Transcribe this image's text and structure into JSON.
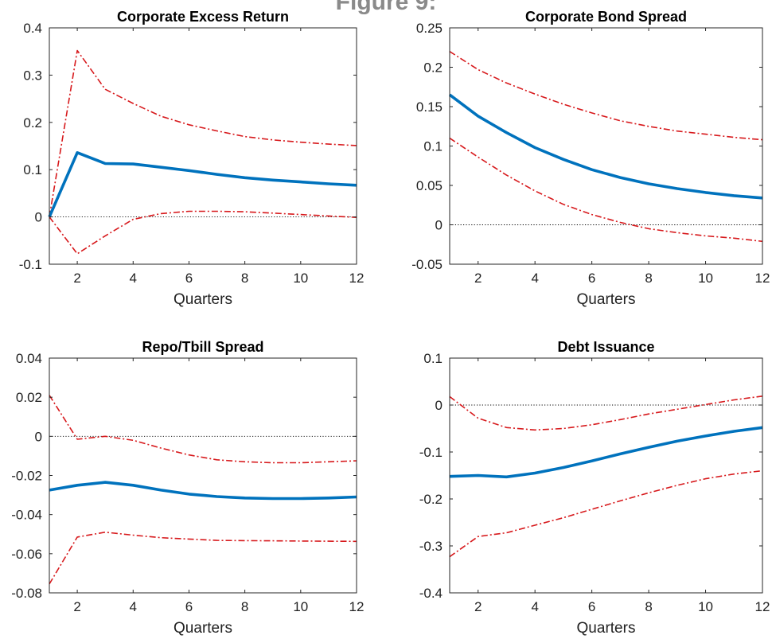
{
  "figure_title": "Figure 9:",
  "colors": {
    "median": "#0072BD",
    "bands": "#D7191C",
    "zero_line": "#000000",
    "axes": "#262626"
  },
  "chart_data": [
    {
      "type": "line",
      "title": "Corporate Excess Return",
      "xlabel": "Quarters",
      "ylabel": "",
      "xlim": [
        1,
        12
      ],
      "ylim": [
        -0.1,
        0.4
      ],
      "xticks": [
        2,
        4,
        6,
        8,
        10,
        12
      ],
      "xtick_labels": [
        "2",
        "4",
        "6",
        "8",
        "10",
        "12"
      ],
      "yticks": [
        -0.1,
        0,
        0.1,
        0.2,
        0.3,
        0.4
      ],
      "ytick_labels": [
        "-0.1",
        "0",
        "0.1",
        "0.2",
        "0.3",
        "0.4"
      ],
      "grid": false,
      "legend": "none",
      "x": [
        1,
        2,
        3,
        4,
        5,
        6,
        7,
        8,
        9,
        10,
        11,
        12
      ],
      "series": [
        {
          "role": "upper",
          "values": [
            0,
            0.352,
            0.27,
            0.24,
            0.213,
            0.195,
            0.182,
            0.17,
            0.163,
            0.158,
            0.154,
            0.151
          ]
        },
        {
          "role": "median",
          "values": [
            0,
            0.136,
            0.113,
            0.112,
            0.105,
            0.098,
            0.09,
            0.083,
            0.078,
            0.074,
            0.07,
            0.067
          ]
        },
        {
          "role": "lower",
          "values": [
            0,
            -0.078,
            -0.04,
            -0.005,
            0.007,
            0.012,
            0.012,
            0.011,
            0.008,
            0.005,
            0.002,
            -0.001
          ]
        }
      ]
    },
    {
      "type": "line",
      "title": "Corporate Bond Spread",
      "xlabel": "Quarters",
      "ylabel": "",
      "xlim": [
        1,
        12
      ],
      "ylim": [
        -0.05,
        0.25
      ],
      "xticks": [
        2,
        4,
        6,
        8,
        10,
        12
      ],
      "xtick_labels": [
        "2",
        "4",
        "6",
        "8",
        "10",
        "12"
      ],
      "yticks": [
        -0.05,
        0,
        0.05,
        0.1,
        0.15,
        0.2,
        0.25
      ],
      "ytick_labels": [
        "-0.05",
        "0",
        "0.05",
        "0.1",
        "0.15",
        "0.2",
        "0.25"
      ],
      "grid": false,
      "legend": "none",
      "x": [
        1,
        2,
        3,
        4,
        5,
        6,
        7,
        8,
        9,
        10,
        11,
        12
      ],
      "series": [
        {
          "role": "upper",
          "values": [
            0.22,
            0.197,
            0.18,
            0.166,
            0.153,
            0.142,
            0.132,
            0.125,
            0.119,
            0.115,
            0.111,
            0.108
          ]
        },
        {
          "role": "median",
          "values": [
            0.165,
            0.138,
            0.117,
            0.098,
            0.083,
            0.07,
            0.06,
            0.052,
            0.046,
            0.041,
            0.037,
            0.034
          ]
        },
        {
          "role": "lower",
          "values": [
            0.11,
            0.086,
            0.063,
            0.043,
            0.026,
            0.013,
            0.003,
            -0.005,
            -0.01,
            -0.014,
            -0.017,
            -0.021
          ]
        }
      ]
    },
    {
      "type": "line",
      "title": "Repo/Tbill Spread",
      "xlabel": "Quarters",
      "ylabel": "",
      "xlim": [
        1,
        12
      ],
      "ylim": [
        -0.08,
        0.04
      ],
      "xticks": [
        2,
        4,
        6,
        8,
        10,
        12
      ],
      "xtick_labels": [
        "2",
        "4",
        "6",
        "8",
        "10",
        "12"
      ],
      "yticks": [
        -0.08,
        -0.06,
        -0.04,
        -0.02,
        0,
        0.02,
        0.04
      ],
      "ytick_labels": [
        "-0.08",
        "-0.06",
        "-0.04",
        "-0.02",
        "0",
        "0.02",
        "0.04"
      ],
      "grid": false,
      "legend": "none",
      "x": [
        1,
        2,
        3,
        4,
        5,
        6,
        7,
        8,
        9,
        10,
        11,
        12
      ],
      "series": [
        {
          "role": "upper",
          "values": [
            0.021,
            -0.0015,
            0,
            -0.002,
            -0.006,
            -0.0095,
            -0.012,
            -0.013,
            -0.0135,
            -0.0135,
            -0.013,
            -0.0125
          ]
        },
        {
          "role": "median",
          "values": [
            -0.0275,
            -0.025,
            -0.0235,
            -0.025,
            -0.0275,
            -0.0295,
            -0.0308,
            -0.0315,
            -0.0318,
            -0.0318,
            -0.0315,
            -0.031
          ]
        },
        {
          "role": "lower",
          "values": [
            -0.0755,
            -0.0515,
            -0.049,
            -0.0505,
            -0.0518,
            -0.0525,
            -0.0532,
            -0.0533,
            -0.0534,
            -0.0535,
            -0.0536,
            -0.0537
          ]
        }
      ]
    },
    {
      "type": "line",
      "title": "Debt Issuance",
      "xlabel": "Quarters",
      "ylabel": "",
      "xlim": [
        1,
        12
      ],
      "ylim": [
        -0.4,
        0.1
      ],
      "xticks": [
        2,
        4,
        6,
        8,
        10,
        12
      ],
      "xtick_labels": [
        "2",
        "4",
        "6",
        "8",
        "10",
        "12"
      ],
      "yticks": [
        -0.4,
        -0.3,
        -0.2,
        -0.1,
        0,
        0.1
      ],
      "ytick_labels": [
        "-0.4",
        "-0.3",
        "-0.2",
        "-0.1",
        "0",
        "0.1"
      ],
      "grid": false,
      "legend": "none",
      "x": [
        1,
        2,
        3,
        4,
        5,
        6,
        7,
        8,
        9,
        10,
        11,
        12
      ],
      "series": [
        {
          "role": "upper",
          "values": [
            0.018,
            -0.028,
            -0.048,
            -0.053,
            -0.05,
            -0.042,
            -0.031,
            -0.019,
            -0.009,
            0.001,
            0.011,
            0.019
          ]
        },
        {
          "role": "median",
          "values": [
            -0.152,
            -0.15,
            -0.153,
            -0.145,
            -0.133,
            -0.119,
            -0.104,
            -0.09,
            -0.077,
            -0.066,
            -0.056,
            -0.048
          ]
        },
        {
          "role": "lower",
          "values": [
            -0.323,
            -0.28,
            -0.272,
            -0.256,
            -0.24,
            -0.222,
            -0.204,
            -0.187,
            -0.171,
            -0.157,
            -0.147,
            -0.14
          ]
        }
      ]
    }
  ]
}
